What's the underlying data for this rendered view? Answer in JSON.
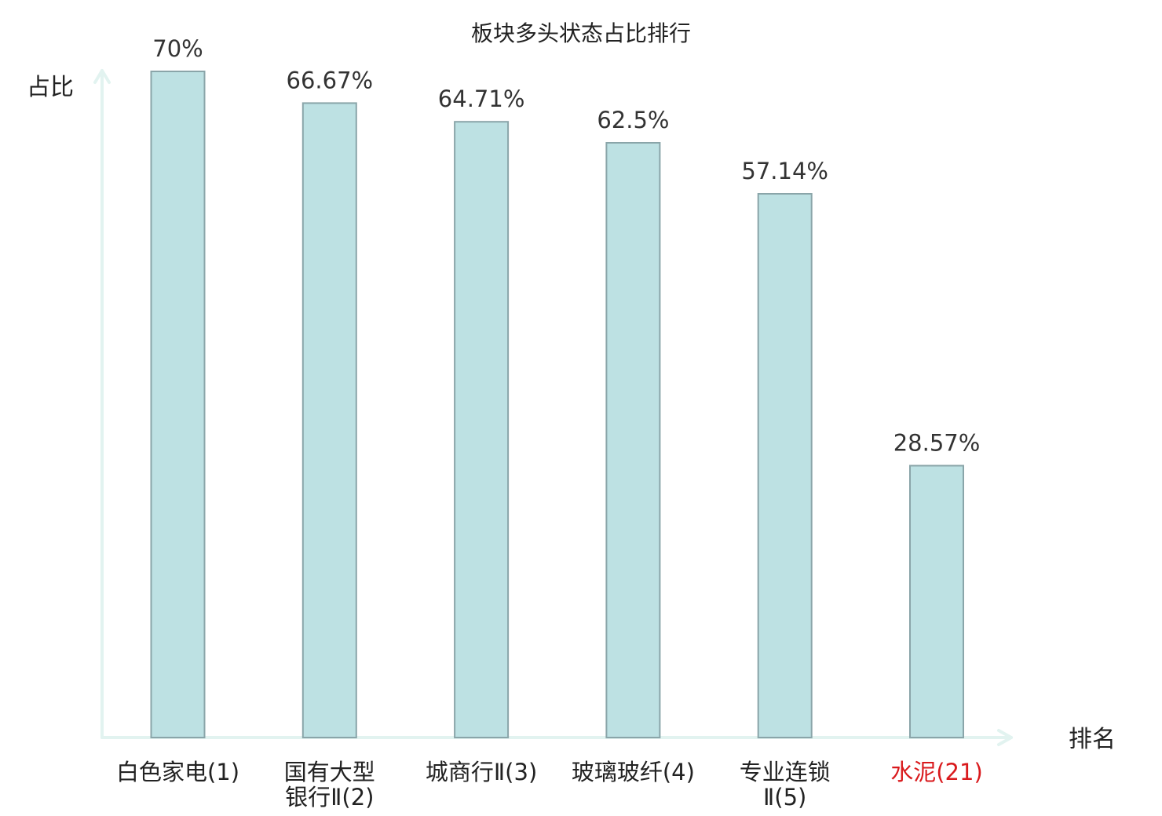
{
  "chart_data": {
    "type": "bar",
    "title": "板块多头状态占比排行",
    "ylabel": "占比",
    "xlabel": "排名",
    "ylim": [
      0,
      70
    ],
    "grid": false,
    "legend": "none",
    "categories": [
      {
        "lines": [
          "白色家电(1)"
        ],
        "color": "#222222"
      },
      {
        "lines": [
          "国有大型",
          "银行Ⅱ(2)"
        ],
        "color": "#222222"
      },
      {
        "lines": [
          "城商行Ⅱ(3)"
        ],
        "color": "#222222"
      },
      {
        "lines": [
          "玻璃玻纤(4)"
        ],
        "color": "#222222"
      },
      {
        "lines": [
          "专业连锁",
          "Ⅱ(5)"
        ],
        "color": "#222222"
      },
      {
        "lines": [
          "水泥(21)"
        ],
        "color": "#d9191c"
      }
    ],
    "values": [
      70,
      66.67,
      64.71,
      62.5,
      57.14,
      28.57
    ],
    "value_labels": [
      "70%",
      "66.67%",
      "64.71%",
      "62.5%",
      "57.14%",
      "28.57%"
    ],
    "colors": {
      "bar_fill": "#bde1e3",
      "bar_stroke": "#8aa5a9",
      "axis": "#e2f3f0",
      "highlight_label": "#d9191c"
    }
  }
}
